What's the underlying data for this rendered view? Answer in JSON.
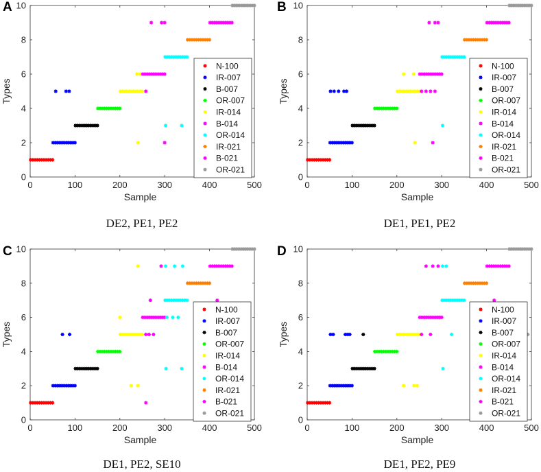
{
  "chart_data": [
    {
      "panel": "A",
      "caption": "DE2, PE1, PE2",
      "type": "scatter",
      "xlabel": "Sample",
      "ylabel": "Types",
      "xlim": [
        0,
        500
      ],
      "ylim": [
        0,
        10
      ],
      "xticks": [
        "0",
        "100",
        "200",
        "300",
        "400",
        "500"
      ],
      "yticks": [
        "0",
        "2",
        "4",
        "6",
        "8",
        "10"
      ],
      "legend_position": "right",
      "series": [
        {
          "name": "N-100",
          "color": "#ff0000",
          "segments": [
            [
              1,
              50,
              1
            ]
          ],
          "points": []
        },
        {
          "name": "IR-007",
          "color": "#0000ff",
          "segments": [
            [
              51,
              100,
              2
            ]
          ],
          "points": [
            [
              57,
              5
            ],
            [
              80,
              5
            ],
            [
              87,
              5
            ]
          ]
        },
        {
          "name": "B-007",
          "color": "#000000",
          "segments": [
            [
              101,
              150,
              3
            ]
          ],
          "points": []
        },
        {
          "name": "OR-007",
          "color": "#00ff00",
          "segments": [
            [
              151,
              200,
              4
            ]
          ],
          "points": []
        },
        {
          "name": "IR-014",
          "color": "#ffff00",
          "segments": [
            [
              201,
              250,
              5
            ]
          ],
          "points": [
            [
              238,
              6
            ],
            [
              245,
              6
            ],
            [
              240,
              2
            ]
          ]
        },
        {
          "name": "B-014",
          "color": "#ff00ff",
          "segments": [
            [
              251,
              300,
              6
            ]
          ],
          "points": [
            [
              258,
              5
            ],
            [
              300,
              2
            ]
          ]
        },
        {
          "name": "OR-014",
          "color": "#00ffff",
          "segments": [
            [
              301,
              350,
              7
            ]
          ],
          "points": [
            [
              302,
              3
            ],
            [
              338,
              3
            ]
          ]
        },
        {
          "name": "IR-021",
          "color": "#ff8000",
          "segments": [
            [
              351,
              400,
              8
            ]
          ],
          "points": []
        },
        {
          "name": "B-021",
          "color": "#ff00ff",
          "segments": [
            [
              401,
              450,
              9
            ]
          ],
          "points": [
            [
              270,
              9
            ],
            [
              293,
              9
            ],
            [
              300,
              9
            ]
          ]
        },
        {
          "name": "OR-021",
          "color": "#999999",
          "segments": [
            [
              451,
              500,
              10
            ]
          ],
          "points": []
        }
      ]
    },
    {
      "panel": "B",
      "caption": "DE1, PE1, PE2",
      "type": "scatter",
      "xlabel": "Sample",
      "ylabel": "Types",
      "xlim": [
        0,
        500
      ],
      "ylim": [
        0,
        10
      ],
      "xticks": [
        "0",
        "100",
        "200",
        "300",
        "400",
        "500"
      ],
      "yticks": [
        "0",
        "2",
        "4",
        "6",
        "8",
        "10"
      ],
      "legend_position": "right",
      "series": [
        {
          "name": "N-100",
          "color": "#ff0000",
          "segments": [
            [
              1,
              50,
              1
            ]
          ],
          "points": []
        },
        {
          "name": "IR-007",
          "color": "#0000ff",
          "segments": [
            [
              51,
              100,
              2
            ]
          ],
          "points": [
            [
              52,
              5
            ],
            [
              60,
              5
            ],
            [
              70,
              5
            ],
            [
              82,
              5
            ],
            [
              88,
              5
            ]
          ]
        },
        {
          "name": "B-007",
          "color": "#000000",
          "segments": [
            [
              101,
              150,
              3
            ]
          ],
          "points": []
        },
        {
          "name": "OR-007",
          "color": "#00ff00",
          "segments": [
            [
              151,
              200,
              4
            ]
          ],
          "points": []
        },
        {
          "name": "IR-014",
          "color": "#ffff00",
          "segments": [
            [
              201,
              250,
              5
            ]
          ],
          "points": [
            [
              215,
              6
            ],
            [
              237,
              6
            ],
            [
              240,
              2
            ]
          ]
        },
        {
          "name": "B-014",
          "color": "#ff00ff",
          "segments": [
            [
              251,
              300,
              6
            ]
          ],
          "points": [
            [
              255,
              5
            ],
            [
              265,
              5
            ],
            [
              275,
              5
            ],
            [
              285,
              5
            ],
            [
              280,
              2
            ]
          ]
        },
        {
          "name": "OR-014",
          "color": "#00ffff",
          "segments": [
            [
              301,
              350,
              7
            ]
          ],
          "points": [
            [
              302,
              3
            ]
          ]
        },
        {
          "name": "IR-021",
          "color": "#ff8000",
          "segments": [
            [
              351,
              400,
              8
            ]
          ],
          "points": []
        },
        {
          "name": "B-021",
          "color": "#ff00ff",
          "segments": [
            [
              401,
              450,
              9
            ]
          ],
          "points": [
            [
              272,
              9
            ],
            [
              285,
              9
            ],
            [
              292,
              9
            ]
          ]
        },
        {
          "name": "OR-021",
          "color": "#999999",
          "segments": [
            [
              451,
              500,
              10
            ]
          ],
          "points": []
        }
      ]
    },
    {
      "panel": "C",
      "caption": "DE1, PE2, SE10",
      "type": "scatter",
      "xlabel": "Sample",
      "ylabel": "Types",
      "xlim": [
        0,
        500
      ],
      "ylim": [
        0,
        10
      ],
      "xticks": [
        "0",
        "100",
        "200",
        "300",
        "400",
        "500"
      ],
      "yticks": [
        "0",
        "2",
        "4",
        "6",
        "8",
        "10"
      ],
      "legend_position": "right",
      "series": [
        {
          "name": "N-100",
          "color": "#ff0000",
          "segments": [
            [
              1,
              50,
              1
            ]
          ],
          "points": []
        },
        {
          "name": "IR-007",
          "color": "#0000ff",
          "segments": [
            [
              51,
              100,
              2
            ]
          ],
          "points": [
            [
              72,
              5
            ],
            [
              88,
              5
            ]
          ]
        },
        {
          "name": "B-007",
          "color": "#000000",
          "segments": [
            [
              101,
              150,
              3
            ]
          ],
          "points": []
        },
        {
          "name": "OR-007",
          "color": "#00ff00",
          "segments": [
            [
              151,
              200,
              4
            ]
          ],
          "points": []
        },
        {
          "name": "IR-014",
          "color": "#ffff00",
          "segments": [
            [
              201,
              250,
              5
            ]
          ],
          "points": [
            [
              240,
              9
            ],
            [
              200,
              6
            ],
            [
              225,
              2
            ],
            [
              240,
              2
            ]
          ]
        },
        {
          "name": "B-014",
          "color": "#ff00ff",
          "segments": [
            [
              251,
              300,
              6
            ]
          ],
          "points": [
            [
              258,
              5
            ],
            [
              265,
              5
            ],
            [
              275,
              5
            ],
            [
              268,
              7
            ],
            [
              258,
              1
            ]
          ]
        },
        {
          "name": "OR-014",
          "color": "#00ffff",
          "segments": [
            [
              301,
              350,
              7
            ]
          ],
          "points": [
            [
              302,
              9
            ],
            [
              322,
              9
            ],
            [
              340,
              9
            ],
            [
              305,
              6
            ],
            [
              318,
              6
            ],
            [
              330,
              6
            ],
            [
              303,
              3
            ],
            [
              338,
              3
            ]
          ]
        },
        {
          "name": "IR-021",
          "color": "#ff8000",
          "segments": [
            [
              351,
              400,
              8
            ]
          ],
          "points": []
        },
        {
          "name": "B-021",
          "color": "#ff00ff",
          "segments": [
            [
              401,
              450,
              9
            ]
          ],
          "points": [
            [
              292,
              9
            ],
            [
              417,
              7
            ]
          ]
        },
        {
          "name": "OR-021",
          "color": "#999999",
          "segments": [
            [
              451,
              500,
              10
            ]
          ],
          "points": []
        }
      ]
    },
    {
      "panel": "D",
      "caption": "DE1, PE2, PE9",
      "type": "scatter",
      "xlabel": "Sample",
      "ylabel": "Types",
      "xlim": [
        0,
        500
      ],
      "ylim": [
        0,
        10
      ],
      "xticks": [
        "0",
        "100",
        "200",
        "300",
        "400",
        "500"
      ],
      "yticks": [
        "0",
        "2",
        "4",
        "6",
        "8",
        "10"
      ],
      "legend_position": "right",
      "series": [
        {
          "name": "N-100",
          "color": "#ff0000",
          "segments": [
            [
              1,
              50,
              1
            ]
          ],
          "points": []
        },
        {
          "name": "IR-007",
          "color": "#0000ff",
          "segments": [
            [
              51,
              100,
              2
            ]
          ],
          "points": [
            [
              52,
              5
            ],
            [
              58,
              5
            ],
            [
              85,
              5
            ],
            [
              90,
              5
            ],
            [
              95,
              5
            ]
          ]
        },
        {
          "name": "B-007",
          "color": "#000000",
          "segments": [
            [
              101,
              150,
              3
            ]
          ],
          "points": [
            [
              125,
              5
            ]
          ]
        },
        {
          "name": "OR-007",
          "color": "#00ff00",
          "segments": [
            [
              151,
              200,
              4
            ]
          ],
          "points": []
        },
        {
          "name": "IR-014",
          "color": "#ffff00",
          "segments": [
            [
              201,
              250,
              5
            ]
          ],
          "points": [
            [
              215,
              2
            ],
            [
              238,
              2
            ],
            [
              245,
              2
            ]
          ]
        },
        {
          "name": "B-014",
          "color": "#ff00ff",
          "segments": [
            [
              251,
              300,
              6
            ]
          ],
          "points": [
            [
              255,
              5
            ],
            [
              275,
              5
            ],
            [
              265,
              9
            ],
            [
              280,
              9
            ],
            [
              292,
              9
            ]
          ]
        },
        {
          "name": "OR-014",
          "color": "#00ffff",
          "segments": [
            [
              301,
              350,
              7
            ]
          ],
          "points": [
            [
              302,
              9
            ],
            [
              310,
              9
            ],
            [
              322,
              5
            ],
            [
              303,
              3
            ]
          ]
        },
        {
          "name": "IR-021",
          "color": "#ff8000",
          "segments": [
            [
              351,
              400,
              8
            ]
          ],
          "points": []
        },
        {
          "name": "B-021",
          "color": "#ff00ff",
          "segments": [
            [
              401,
              450,
              9
            ]
          ],
          "points": [
            [
              417,
              7
            ]
          ]
        },
        {
          "name": "OR-021",
          "color": "#999999",
          "segments": [
            [
              451,
              500,
              10
            ]
          ],
          "points": [
            [
              488,
              4
            ],
            [
              492,
              5
            ]
          ]
        }
      ]
    }
  ]
}
